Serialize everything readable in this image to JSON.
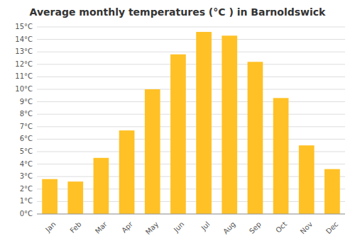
{
  "chart_data": {
    "type": "bar",
    "title": "Average monthly temperatures (°C ) in Barnoldswick",
    "categories": [
      "Jan",
      "Feb",
      "Mar",
      "Apr",
      "May",
      "Jun",
      "Jul",
      "Aug",
      "Sep",
      "Oct",
      "Nov",
      "Dec"
    ],
    "values": [
      2.8,
      2.6,
      4.5,
      6.7,
      10.0,
      12.8,
      14.6,
      14.3,
      12.2,
      9.3,
      5.5,
      3.6
    ],
    "color": "#FFC125",
    "ylim": [
      0,
      15
    ],
    "yticks": [
      {
        "value": 0,
        "label": "0°C"
      },
      {
        "value": 1,
        "label": "1°C"
      },
      {
        "value": 2,
        "label": "2°C"
      },
      {
        "value": 3,
        "label": "3°C"
      },
      {
        "value": 4,
        "label": "4°C"
      },
      {
        "value": 5,
        "label": "5°C"
      },
      {
        "value": 6,
        "label": "6°C"
      },
      {
        "value": 7,
        "label": "7°C"
      },
      {
        "value": 8,
        "label": "8°C"
      },
      {
        "value": 9,
        "label": "9°C"
      },
      {
        "value": 10,
        "label": "10°C"
      },
      {
        "value": 11,
        "label": "11°C"
      },
      {
        "value": 12,
        "label": "12°C"
      },
      {
        "value": 13,
        "label": "13°C"
      },
      {
        "value": 14,
        "label": "14°C"
      },
      {
        "value": 15,
        "label": "15°C"
      }
    ],
    "grid": true
  }
}
